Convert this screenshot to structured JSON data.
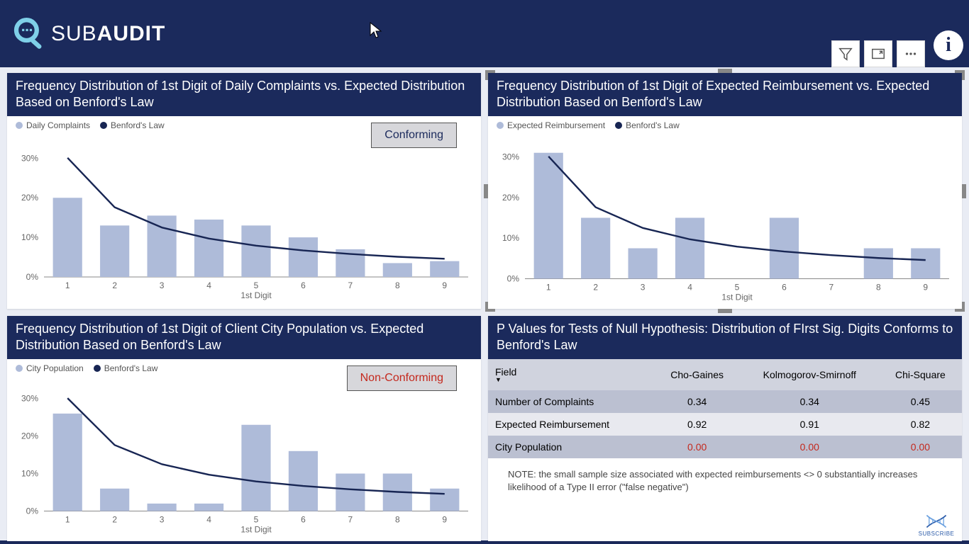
{
  "brand": {
    "part1": "SUB",
    "part2": "AUDIT"
  },
  "colors": {
    "header_bg": "#1b2a5c",
    "panel_title_bg": "#1b2a5c",
    "bar_fill": "#aebbd9",
    "line_stroke": "#172553",
    "axis": "#8a8a8a",
    "text": "#666666",
    "badge_conform_text": "#1b2a5c",
    "badge_nonconform_text": "#c4281d",
    "table_header_bg": "#d0d3de",
    "table_row_odd_bg": "#bbc0d1",
    "table_row_even_bg": "#e8e9ef",
    "fail_text": "#c4281d"
  },
  "benford_curve": [
    30.1,
    17.6,
    12.5,
    9.7,
    7.9,
    6.7,
    5.8,
    5.1,
    4.6
  ],
  "chart_axis": {
    "x_label": "1st Digit",
    "categories": [
      "1",
      "2",
      "3",
      "4",
      "5",
      "6",
      "7",
      "8",
      "9"
    ],
    "y_ticks": [
      0,
      10,
      20,
      30
    ],
    "y_tick_labels": [
      "0%",
      "10%",
      "20%",
      "30%"
    ],
    "y_max": 34,
    "line_width": 2.4,
    "bar_width_ratio": 0.62,
    "font_size_tick": 12,
    "font_size_axis_label": 12
  },
  "charts": {
    "a": {
      "title": "Frequency Distribution of 1st Digit of Daily Complaints vs. Expected Distribution Based on Benford's Law",
      "legend_bar": "Daily Complaints",
      "legend_line": "Benford's Law",
      "values": [
        20,
        13,
        15.5,
        14.5,
        13,
        10,
        7,
        3.5,
        4
      ],
      "badge": {
        "text": "Conforming",
        "kind": "conform"
      }
    },
    "b": {
      "title": "Frequency Distribution of 1st Digit of Expected Reimbursement vs. Expected Distribution Based on Benford's Law",
      "legend_bar": "Expected Reimbursement",
      "legend_line": "Benford's Law",
      "values": [
        31,
        15,
        7.5,
        15,
        0,
        15,
        0,
        7.5,
        7.5
      ],
      "selected": true
    },
    "c": {
      "title": "Frequency Distribution of 1st Digit of Client City Population vs. Expected Distribution Based on Benford's Law",
      "legend_bar": "City Population",
      "legend_line": "Benford's Law",
      "values": [
        26,
        6,
        2,
        2,
        23,
        16,
        10,
        10,
        6
      ],
      "badge": {
        "text": "Non-Conforming",
        "kind": "nonconform"
      }
    }
  },
  "pvalues": {
    "title": "P Values for Tests of Null Hypothesis: Distribution of FIrst Sig. Digits Conforms to Benford's Law",
    "columns": [
      "Field",
      "Cho-Gaines",
      "Kolmogorov-Smirnoff",
      "Chi-Square"
    ],
    "rows": [
      {
        "field": "Number of Complaints",
        "vals": [
          "0.34",
          "0.34",
          "0.45"
        ],
        "fail": false
      },
      {
        "field": "Expected Reimbursement",
        "vals": [
          "0.92",
          "0.91",
          "0.82"
        ],
        "fail": false
      },
      {
        "field": "City Population",
        "vals": [
          "0.00",
          "0.00",
          "0.00"
        ],
        "fail": true
      }
    ],
    "note": "NOTE: the small sample size associated with expected reimbursements <> 0 substantially increases likelihood of a Type II error (\"false negative\")"
  },
  "subscribe_label": "SUBSCRIBE"
}
